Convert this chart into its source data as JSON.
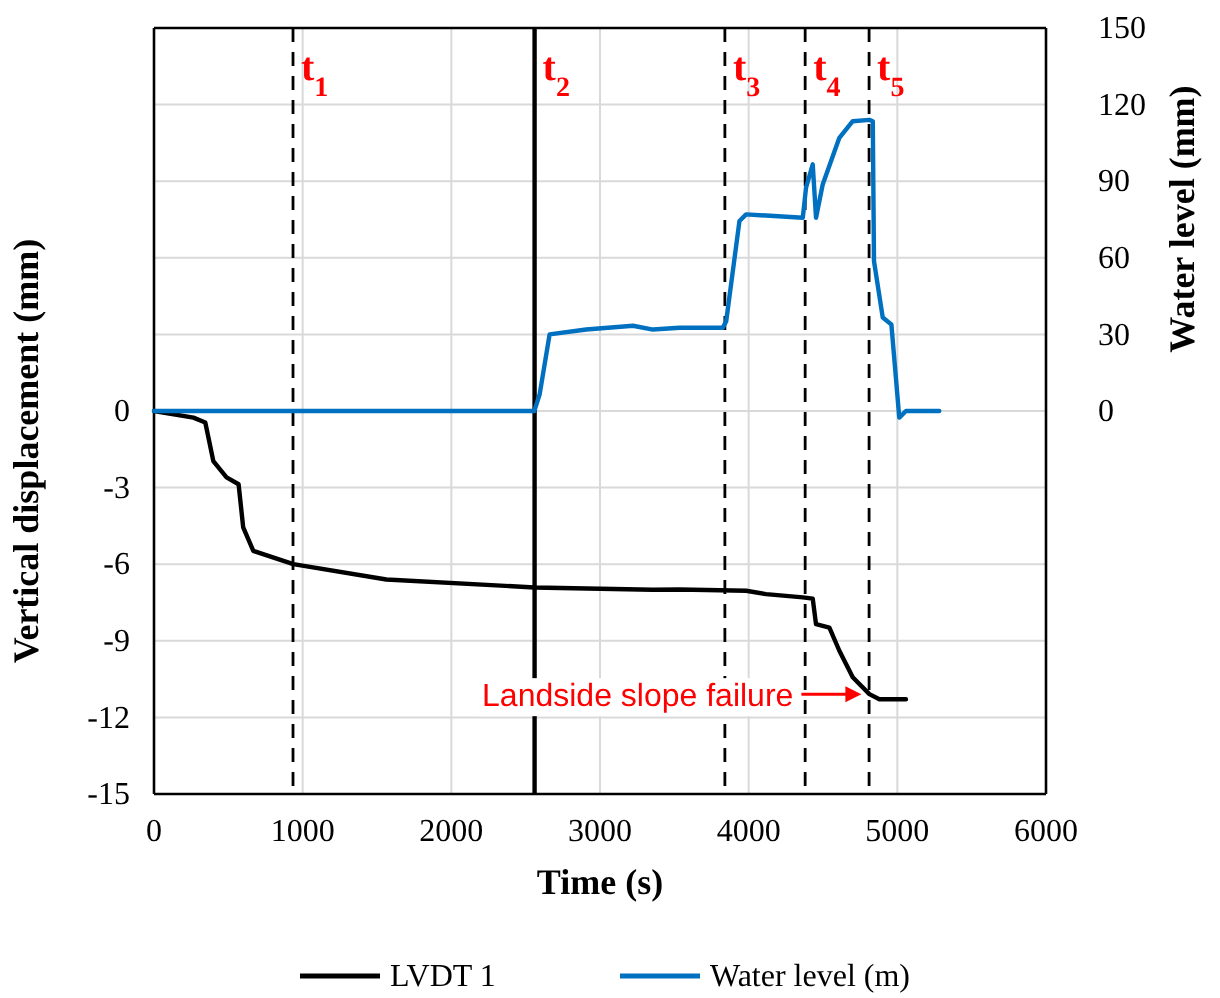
{
  "chart_data": {
    "type": "line",
    "xlabel": "Time (s)",
    "ylabel": "Vertical displacement (mm)",
    "y2label": "Water level (mm)",
    "xlim": [
      0,
      6000
    ],
    "xticks": [
      0,
      1000,
      2000,
      3000,
      4000,
      5000,
      6000
    ],
    "ylim": [
      -15,
      15
    ],
    "yticks": [
      -15,
      -12,
      -9,
      -6,
      -3,
      0,
      {
        "value": 3,
        "label": null
      },
      {
        "value": 6,
        "label": null
      },
      {
        "value": 9,
        "label": null
      },
      {
        "value": 12,
        "label": null
      },
      {
        "value": 15,
        "label": null
      }
    ],
    "y2lim": [
      -150,
      150
    ],
    "y2ticks": [
      0,
      30,
      60,
      90,
      120,
      150
    ],
    "grid": true,
    "legend": "bottom",
    "line_style": "solid",
    "marker": "none",
    "series": [
      {
        "name": "LVDT 1",
        "color": "#000000",
        "x": [
          0,
          265,
          345,
          399,
          488,
          569,
          600,
          668,
          937,
          1563,
          2558,
          3356,
          3535,
          3983,
          4117,
          4364,
          4431,
          4453,
          4543,
          4610,
          4700,
          4812,
          4879,
          5058
        ],
        "values": [
          0,
          -0.26,
          -0.45,
          -1.96,
          -2.6,
          -2.87,
          -4.56,
          -5.48,
          -6.0,
          -6.6,
          -6.91,
          -7.0,
          -6.99,
          -7.04,
          -7.17,
          -7.3,
          -7.35,
          -8.35,
          -8.48,
          -9.39,
          -10.43,
          -11.09,
          -11.29,
          -11.29
        ]
      },
      {
        "name": "Water level (m)",
        "color": "#0070c0",
        "axis": "y2",
        "x": [
          0,
          2558,
          2594,
          2661,
          2907,
          3222,
          3356,
          3535,
          3826,
          3849,
          3938,
          3983,
          4364,
          4386,
          4431,
          4453,
          4498,
          4610,
          4700,
          4812,
          4835,
          4843,
          4902,
          4960,
          5013,
          5058,
          5282
        ],
        "values": [
          0,
          0,
          6.5,
          30,
          31.9,
          33.4,
          31.9,
          32.6,
          32.6,
          35.2,
          74.4,
          77,
          75.7,
          87.5,
          96.6,
          75.7,
          88.7,
          107,
          113.5,
          114,
          113.5,
          58.7,
          36.6,
          33.9,
          -2.6,
          0,
          0
        ]
      }
    ],
    "ref_lines": [
      {
        "axis": "x",
        "value": 935,
        "label": "t$_{1}$",
        "color": "#000000",
        "line_style": "dashed"
      },
      {
        "axis": "x",
        "value": 2560,
        "label": "t$_{2}$",
        "color": "#000000",
        "line_style": "solid"
      },
      {
        "axis": "x",
        "value": 3840,
        "label": "t$_{3}$",
        "color": "#000000",
        "line_style": "dashed"
      },
      {
        "axis": "x",
        "value": 4380,
        "label": "t$_{4}$",
        "color": "#000000",
        "line_style": "dashed"
      },
      {
        "axis": "x",
        "value": 4810,
        "label": "t$_{5}$",
        "color": "#000000",
        "line_style": "dashed"
      }
    ],
    "annotations": [
      {
        "text": "Landside slope failure",
        "x": 4812,
        "y": -11.09
      }
    ]
  }
}
